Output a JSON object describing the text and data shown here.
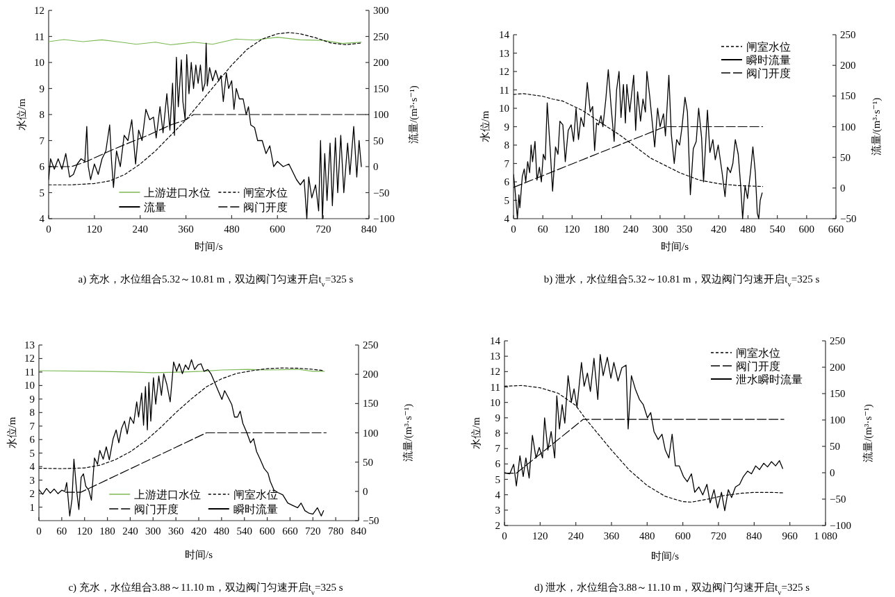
{
  "chart_data": [
    {
      "type": "line",
      "title": "a) 充水，水位组合5.32～10.81 m，双边阀门匀速开启t$_{v}$=325 s",
      "xlabel": "时间/s",
      "ylabel": "水位/m",
      "y2label": "流量/(m³·s⁻¹)",
      "xlim": [
        0,
        840
      ],
      "xticks": [
        0,
        120,
        240,
        360,
        480,
        600,
        720,
        840
      ],
      "ylim": [
        4,
        12
      ],
      "yticks": [
        4,
        5,
        6,
        7,
        8,
        9,
        10,
        11,
        12
      ],
      "y2lim": [
        -100,
        300
      ],
      "y2ticks": [
        -100,
        -50,
        0,
        50,
        100,
        150,
        200,
        250,
        300
      ],
      "legend": "bottom",
      "series": [
        {
          "name": "上游进口水位",
          "color": "#7cb854",
          "line_style": "solid",
          "x": [
            0,
            40,
            90,
            140,
            190,
            230,
            280,
            320,
            380,
            430,
            490,
            540,
            600,
            660,
            720,
            770,
            820
          ],
          "values": [
            10.8,
            10.88,
            10.8,
            10.87,
            10.78,
            10.7,
            10.78,
            10.68,
            10.78,
            10.7,
            10.9,
            10.86,
            10.97,
            10.87,
            10.85,
            10.73,
            10.78
          ]
        },
        {
          "name": "闸室水位",
          "color": "#000000",
          "line_style": "dotted",
          "x": [
            0,
            60,
            120,
            160,
            200,
            240,
            280,
            320,
            360,
            400,
            440,
            480,
            520,
            560,
            600,
            630,
            660,
            700,
            740,
            780,
            820
          ],
          "values": [
            5.3,
            5.3,
            5.35,
            5.45,
            5.7,
            6.1,
            6.6,
            7.2,
            7.8,
            8.5,
            9.2,
            9.9,
            10.5,
            10.9,
            11.1,
            11.15,
            11.1,
            10.95,
            10.75,
            10.68,
            10.75
          ]
        },
        {
          "name": "流量",
          "color": "#000000",
          "line_style": "solid",
          "axis": "y2",
          "x": [
            0,
            5,
            15,
            25,
            35,
            45,
            55,
            65,
            75,
            85,
            95,
            100,
            104,
            110,
            120,
            130,
            140,
            150,
            160,
            165,
            170,
            178,
            188,
            198,
            208,
            218,
            228,
            236,
            245,
            255,
            265,
            275,
            282,
            292,
            300,
            310,
            318,
            325,
            330,
            335,
            340,
            348,
            352,
            358,
            362,
            368,
            374,
            380,
            386,
            392,
            398,
            404,
            410,
            413,
            416,
            422,
            430,
            438,
            446,
            452,
            458,
            466,
            472,
            480,
            486,
            492,
            500,
            510,
            518,
            524,
            530,
            540,
            548,
            560,
            570,
            580,
            590,
            600,
            615,
            630,
            650,
            660,
            670,
            677,
            682,
            690,
            700,
            708,
            713,
            718,
            724,
            730,
            738,
            744,
            752,
            758,
            766,
            774,
            784,
            790,
            800,
            808,
            814,
            820
          ],
          "values": [
            -25,
            15,
            -5,
            15,
            -5,
            25,
            -20,
            -15,
            5,
            15,
            10,
            77,
            0,
            -25,
            5,
            -15,
            15,
            30,
            80,
            10,
            -40,
            30,
            0,
            60,
            50,
            90,
            5,
            70,
            50,
            110,
            90,
            95,
            55,
            115,
            65,
            140,
            70,
            160,
            60,
            210,
            115,
            205,
            125,
            90,
            215,
            140,
            200,
            150,
            195,
            160,
            195,
            145,
            160,
            237,
            155,
            190,
            165,
            185,
            165,
            175,
            125,
            180,
            150,
            165,
            110,
            150,
            130,
            130,
            100,
            115,
            80,
            75,
            50,
            50,
            25,
            40,
            0,
            10,
            0,
            5,
            -25,
            -35,
            -25,
            -100,
            -20,
            -60,
            -35,
            -85,
            50,
            -100,
            25,
            -65,
            45,
            -75,
            55,
            -50,
            60,
            -50,
            45,
            -15,
            77,
            -20,
            50,
            0
          ]
        },
        {
          "name": "阀门开度",
          "color": "#000000",
          "line_style": "dashed",
          "x": [
            0,
            60,
            100,
            160,
            200,
            260,
            320,
            360,
            380,
            840
          ],
          "values": [
            6.0,
            6.0,
            6.2,
            6.6,
            6.85,
            7.2,
            7.6,
            7.8,
            8.0,
            8.0
          ]
        }
      ]
    },
    {
      "type": "line",
      "title": "b) 泄水，水位组合5.32～10.81 m，双边阀门匀速开启t$_{v}$=325 s",
      "xlabel": "时间/s",
      "ylabel": "水位/m",
      "y2label": "流量/(m³·s⁻¹)",
      "xlim": [
        0,
        660
      ],
      "xticks": [
        0,
        60,
        120,
        180,
        240,
        300,
        350,
        420,
        480,
        540,
        600,
        660
      ],
      "ylim": [
        4,
        14
      ],
      "yticks": [
        4,
        5,
        6,
        7,
        8,
        9,
        10,
        11,
        12,
        13,
        14
      ],
      "y2lim": [
        -50,
        250
      ],
      "y2ticks": [
        -50,
        0,
        50,
        100,
        150,
        200,
        250
      ],
      "legend": "top right",
      "series": [
        {
          "name": "闸室水位",
          "color": "#000000",
          "line_style": "dotted",
          "x": [
            0,
            20,
            60,
            80,
            100,
            140,
            180,
            220,
            260,
            280,
            310,
            340,
            380,
            420,
            460,
            510
          ],
          "values": [
            10.75,
            10.8,
            10.65,
            10.5,
            10.4,
            9.9,
            9.2,
            8.5,
            7.7,
            7.3,
            6.9,
            6.5,
            6.1,
            5.9,
            5.8,
            5.75
          ]
        },
        {
          "name": "瞬时流量",
          "color": "#000000",
          "line_style": "solid",
          "axis": "y2",
          "x": [
            0,
            3,
            8,
            11,
            13,
            18,
            22,
            25,
            29,
            33,
            36,
            39,
            44,
            48,
            53,
            57,
            61,
            65,
            69,
            75,
            80,
            86,
            91,
            95,
            101,
            106,
            112,
            118,
            123,
            128,
            133,
            138,
            144,
            151,
            157,
            162,
            166,
            170,
            174,
            179,
            183,
            189,
            194,
            200,
            206,
            211,
            216,
            220,
            225,
            229,
            232,
            238,
            242,
            246,
            250,
            254,
            260,
            265,
            270,
            273,
            279,
            283,
            289,
            295,
            300,
            307,
            311,
            318,
            323,
            329,
            334,
            340,
            345,
            351,
            356,
            362,
            368,
            374,
            379,
            385,
            389,
            397,
            402,
            408,
            413,
            419,
            427,
            433,
            438,
            444,
            449,
            454,
            460,
            465,
            469,
            474,
            479,
            485,
            490,
            495,
            499,
            502,
            505,
            509
          ],
          "values": [
            22,
            -2,
            -50,
            -11,
            -32,
            19,
            31,
            10,
            43,
            25,
            70,
            43,
            76,
            13,
            34,
            10,
            55,
            46,
            139,
            64,
            -5,
            67,
            55,
            109,
            103,
            43,
            94,
            103,
            76,
            130,
            79,
            115,
            100,
            172,
            124,
            133,
            61,
            106,
            103,
            118,
            100,
            145,
            193,
            130,
            76,
            160,
            190,
            115,
            169,
            106,
            169,
            124,
            154,
            184,
            94,
            157,
            109,
            145,
            124,
            190,
            148,
            115,
            67,
            130,
            100,
            121,
            85,
            184,
            88,
            40,
            79,
            70,
            100,
            148,
            124,
            -11,
            64,
            76,
            130,
            82,
            10,
            127,
            58,
            79,
            46,
            70,
            25,
            -14,
            34,
            25,
            40,
            79,
            55,
            4,
            -50,
            4,
            -17,
            25,
            67,
            25,
            -41,
            -50,
            -20,
            -8
          ]
        },
        {
          "name": "阀门开度",
          "color": "#000000",
          "line_style": "dashed",
          "x": [
            0,
            310,
            510
          ],
          "values": [
            5.7,
            9.0,
            9.0
          ]
        }
      ]
    },
    {
      "type": "line",
      "title": "c) 充水，水位组合3.88～11.10 m，双边阀门匀速开启t$_{v}$=325 s",
      "xlabel": "时间/s",
      "ylabel": "水位/m",
      "y2label": "流量/(m³·s⁻¹)",
      "xlim": [
        0,
        840
      ],
      "xticks": [
        0,
        60,
        120,
        180,
        240,
        300,
        360,
        420,
        480,
        540,
        600,
        660,
        720,
        780,
        840
      ],
      "ylim": [
        0,
        13
      ],
      "yticks": [
        1,
        2,
        3,
        4,
        5,
        6,
        7,
        8,
        9,
        10,
        11,
        12,
        13
      ],
      "y2lim": [
        -50,
        250
      ],
      "y2ticks": [
        -50,
        0,
        50,
        100,
        150,
        200,
        250
      ],
      "legend": "bottom",
      "series": [
        {
          "name": "上游进口水位",
          "color": "#7cb854",
          "line_style": "solid",
          "x": [
            0,
            150,
            240,
            300,
            380,
            430,
            480,
            550,
            600,
            680,
            720,
            750
          ],
          "values": [
            11.1,
            11.05,
            11.0,
            10.95,
            11.0,
            11.05,
            11.15,
            11.2,
            11.15,
            11.2,
            11.05,
            11.05
          ]
        },
        {
          "name": "闸室水位",
          "color": "#000000",
          "line_style": "dotted",
          "x": [
            0,
            60,
            120,
            160,
            200,
            240,
            280,
            320,
            360,
            400,
            440,
            480,
            520,
            560,
            600,
            640,
            680,
            720,
            750
          ],
          "values": [
            3.88,
            3.85,
            3.9,
            4.1,
            4.5,
            5.1,
            5.9,
            6.9,
            8.0,
            9.0,
            9.9,
            10.5,
            10.9,
            11.1,
            11.25,
            11.3,
            11.28,
            11.2,
            11.1
          ]
        },
        {
          "name": "阀门开度",
          "color": "#000000",
          "line_style": "dashed",
          "x": [
            70,
            110,
            440,
            755
          ],
          "values": [
            2.1,
            2.1,
            6.5,
            6.5
          ]
        },
        {
          "name": "瞬时流量",
          "color": "#000000",
          "line_style": "solid",
          "axis": "y2",
          "x": [
            0,
            10,
            20,
            30,
            40,
            50,
            60,
            68,
            73,
            81,
            87,
            92,
            99,
            105,
            111,
            117,
            123,
            131,
            138,
            146,
            154,
            160,
            169,
            177,
            185,
            195,
            203,
            210,
            217,
            225,
            232,
            240,
            249,
            257,
            262,
            270,
            275,
            280,
            285,
            289,
            294,
            301,
            307,
            315,
            322,
            328,
            336,
            345,
            354,
            362,
            369,
            377,
            385,
            393,
            401,
            409,
            418,
            426,
            434,
            444,
            452,
            462,
            471,
            481,
            488,
            497,
            507,
            514,
            522,
            529,
            536,
            546,
            556,
            564,
            572,
            582,
            592,
            602,
            608,
            618,
            628,
            641,
            654,
            667,
            680,
            689,
            699,
            709,
            720,
            732,
            742,
            748
          ],
          "values": [
            3,
            -5,
            5,
            -3,
            4,
            -4,
            2,
            0,
            15,
            -42,
            -13,
            55,
            2,
            -31,
            24,
            30,
            9,
            2,
            -15,
            57,
            46,
            70,
            55,
            76,
            54,
            90,
            105,
            83,
            107,
            120,
            98,
            127,
            116,
            153,
            127,
            168,
            113,
            179,
            105,
            186,
            120,
            194,
            149,
            197,
            164,
            201,
            183,
            153,
            221,
            205,
            218,
            201,
            216,
            208,
            225,
            208,
            216,
            218,
            205,
            208,
            201,
            186,
            172,
            157,
            172,
            161,
            148,
            127,
            127,
            137,
            116,
            101,
            83,
            90,
            68,
            54,
            39,
            31,
            17,
            2,
            -2,
            -6,
            -20,
            -24,
            -28,
            -20,
            -33,
            -37,
            -39,
            -28,
            -42,
            -33
          ]
        }
      ]
    },
    {
      "type": "line",
      "title": "d) 泄水，水位组合3.88～11.10 m，双边阀门匀速开启t$_{v}$=325 s",
      "xlabel": "时间/s",
      "ylabel": "水位/m",
      "y2label": "流量/(m³·s⁻¹)",
      "xlim": [
        0,
        1080
      ],
      "xticks": [
        0,
        120,
        240,
        360,
        480,
        600,
        720,
        840,
        960,
        {
          "value": 1080,
          "label": "1 080"
        }
      ],
      "ylim": [
        2,
        14
      ],
      "yticks": [
        2,
        3,
        4,
        5,
        6,
        7,
        8,
        9,
        10,
        11,
        12,
        13,
        14
      ],
      "y2lim": [
        -100,
        250
      ],
      "y2ticks": [
        -100,
        -50,
        0,
        50,
        100,
        150,
        200,
        250
      ],
      "legend": "top right",
      "series": [
        {
          "name": "闸室水位",
          "color": "#000000",
          "line_style": "dotted",
          "x": [
            0,
            60,
            120,
            180,
            240,
            270,
            300,
            360,
            420,
            480,
            540,
            600,
            630,
            680,
            740,
            800,
            840,
            900,
            940
          ],
          "values": [
            11.05,
            11.1,
            10.95,
            10.6,
            9.8,
            9.0,
            8.3,
            6.9,
            5.6,
            4.6,
            3.9,
            3.55,
            3.52,
            3.7,
            3.95,
            4.1,
            4.15,
            4.15,
            4.12
          ]
        },
        {
          "name": "阀门开度",
          "color": "#000000",
          "line_style": "dashed",
          "x": [
            0,
            40,
            265,
            940
          ],
          "values": [
            5.4,
            5.4,
            8.9,
            8.9
          ]
        },
        {
          "name": "泄水瞬时流量",
          "color": "#000000",
          "line_style": "solid",
          "axis": "y2",
          "x": [
            0,
            18,
            31,
            40,
            52,
            63,
            72,
            83,
            94,
            106,
            117,
            128,
            135,
            146,
            157,
            169,
            176,
            185,
            194,
            203,
            214,
            225,
            234,
            244,
            259,
            268,
            279,
            289,
            301,
            314,
            322,
            332,
            346,
            358,
            368,
            382,
            395,
            409,
            416,
            427,
            440,
            454,
            467,
            481,
            492,
            503,
            517,
            530,
            541,
            553,
            564,
            575,
            588,
            602,
            615,
            629,
            640,
            654,
            667,
            681,
            692,
            705,
            717,
            730,
            741,
            753,
            764,
            777,
            791,
            804,
            818,
            831,
            845,
            858,
            872,
            885,
            898,
            912,
            925,
            936
          ],
          "values": [
            0,
            -2,
            16,
            -25,
            32,
            -7,
            28,
            -10,
            71,
            28,
            48,
            28,
            104,
            43,
            78,
            28,
            146,
            83,
            129,
            94,
            184,
            134,
            159,
            124,
            209,
            164,
            189,
            154,
            217,
            139,
            224,
            184,
            219,
            179,
            209,
            174,
            199,
            204,
            83,
            184,
            159,
            139,
            129,
            104,
            114,
            78,
            63,
            73,
            43,
            28,
            73,
            13,
            13,
            -7,
            -17,
            -2,
            -37,
            -27,
            -42,
            -22,
            -57,
            -32,
            -67,
            -37,
            -72,
            -32,
            -47,
            -27,
            -22,
            -7,
            3,
            -2,
            13,
            6,
            18,
            11,
            21,
            13,
            23,
            8
          ]
        }
      ]
    }
  ]
}
